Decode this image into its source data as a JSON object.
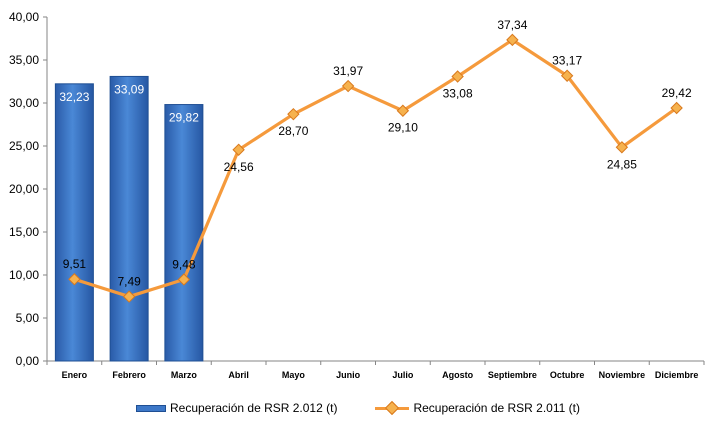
{
  "chart_data": {
    "type": "bar+line",
    "categories": [
      "Enero",
      "Febrero",
      "Marzo",
      "Abril",
      "Mayo",
      "Junio",
      "Julio",
      "Agosto",
      "Septiembre",
      "Octubre",
      "Noviembre",
      "Diciembre"
    ],
    "series": [
      {
        "name": "Recuperación de RSR 2.012 (t)",
        "type": "bar",
        "values": [
          32.23,
          33.09,
          29.82,
          null,
          null,
          null,
          null,
          null,
          null,
          null,
          null,
          null
        ],
        "labels": [
          "32,23",
          "33,09",
          "29,82",
          "",
          "",
          "",
          "",
          "",
          "",
          "",
          "",
          ""
        ],
        "color": "#3d78c8"
      },
      {
        "name": "Recuperación de RSR 2.011 (t)",
        "type": "line",
        "values": [
          9.51,
          7.49,
          9.48,
          24.56,
          28.7,
          31.97,
          29.1,
          33.08,
          37.34,
          33.17,
          24.85,
          29.42
        ],
        "labels": [
          "9,51",
          "7,49",
          "9,48",
          "24,56",
          "28,70",
          "31,97",
          "29,10",
          "33,08",
          "37,34",
          "33,17",
          "24,85",
          "29,42"
        ],
        "color": "#f59a3c"
      }
    ],
    "yticks": [
      "0,00",
      "5,00",
      "10,00",
      "15,00",
      "20,00",
      "25,00",
      "30,00",
      "35,00",
      "40,00"
    ],
    "ylim": [
      0,
      40
    ],
    "grid": false,
    "legend_position": "bottom"
  }
}
